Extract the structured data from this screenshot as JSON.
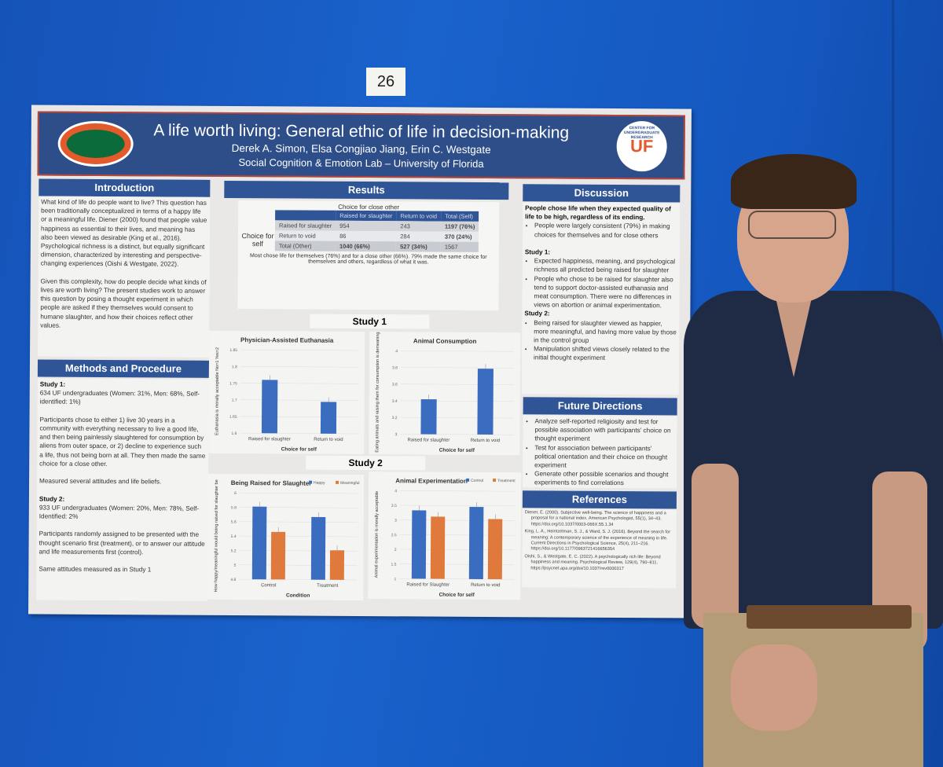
{
  "board_number": "26",
  "poster": {
    "title": "A life worth living: General ethic of life in decision-making",
    "authors": "Derek A. Simon, Elsa Congjiao Jiang, Erin C. Westgate",
    "affiliation": "Social Cognition & Emotion Lab – University of Florida",
    "logo_right_text": "CENTER FOR UNDERGRADUATE RESEARCH",
    "logo_right_mark": "UF",
    "introduction": {
      "heading": "Introduction",
      "p1": "What kind of life do people want to live? This question has been traditionally conceptualized in terms of a happy life or a meaningful life. Diener (2000) found that people value happiness as essential to their lives, and meaning has also been viewed as desirable (King et al., 2016). Psychological richness is a distinct, but equally significant dimension, characterized by interesting and perspective-changing experiences (Oishi & Westgate, 2022).",
      "p2": "Given this complexity, how do people decide what kinds of lives are worth living? The present studies work to answer this question by posing a thought experiment in which people are asked if they themselves would consent to humane slaughter, and how their choices reflect other values."
    },
    "methods": {
      "heading": "Methods and Procedure",
      "s1_title": "Study 1:",
      "s1_sample": "634 UF undergraduates (Women: 31%, Men: 68%, Self-identified: 1%)",
      "s1_p": "Participants chose to either 1) live 30 years in a community with everything necessary to live a good life, and then being painlessly slaughtered for consumption by aliens from outer space, or 2) decline to experience such a life, thus not being born at all. They then made the same choice for a close other.",
      "s1_measures": "Measured several attitudes and life beliefs.",
      "s2_title": "Study 2:",
      "s2_sample": "933 UF undergraduates (Women: 20%, Men: 78%, Self-Identified: 2%",
      "s2_p": "Participants randomly assigned to be presented with the thought scenario first (treatment), or to answer our attitude and life measurements first (control).",
      "s2_measures": "Same attitudes measured as in Study 1"
    },
    "results": {
      "heading": "Results",
      "table": {
        "title": "Choice for close other",
        "row_header": "Choice for self",
        "columns": [
          "",
          "Raised for slaughter",
          "Return to void",
          "Total (Self)"
        ],
        "rows": [
          [
            "Raised for slaughter",
            "954",
            "243",
            "1197 (76%)"
          ],
          [
            "Return to void",
            "86",
            "284",
            "370 (24%)"
          ],
          [
            "Total (Other)",
            "1040 (66%)",
            "527 (34%)",
            "1567"
          ]
        ],
        "caption": "Most chose life for themselves (76%) and for a close other (66%). 79% made the same choice for themselves and others, regardless of what it was."
      },
      "study1_label": "Study 1",
      "study2_label": "Study 2"
    },
    "discussion": {
      "heading": "Discussion",
      "lead": "People chose life when they expected quality of life to be high, regardless of its ending.",
      "lead_bullets": [
        "People were largely consistent (79%) in making choices for themselves and for close others"
      ],
      "s1_title": "Study 1:",
      "s1_bullets": [
        "Expected happiness, meaning, and psychological richness all predicted being raised for slaughter",
        "People who chose to be raised for slaughter also tend to support doctor-assisted euthanasia and meat consumption. There were no differences in views on abortion or animal experimentation."
      ],
      "s2_title": "Study 2:",
      "s2_bullets": [
        "Being raised for slaughter viewed as happier, more meaningful, and having more value by those in the control group",
        "Manipulation shifted views closely related to the initial thought experiment"
      ]
    },
    "future": {
      "heading": "Future Directions",
      "bullets": [
        "Analyze self-reported religiosity and test for possible association with participants' choice on thought experiment",
        "Test for association between participants' political orientation and their choice on thought experiment",
        "Generate other possible scenarios and thought experiments to find correlations"
      ]
    },
    "references": {
      "heading": "References",
      "items": [
        "Diener, E. (2000). Subjective well-being. The science of happiness and a proposal for a national index. American Psychologist, 55(1), 34–43. https://doi.org/10.1037/0003-066X.55.1.34",
        "King, L. A., Heintzelman, S. J., & Ward, S. J. (2016). Beyond the search for meaning: A contemporary science of the experience of meaning in life. Current Directions in Psychological Science, 25(4), 211–216. https://doi.org/10.1177/0963721416656354",
        "Oishi, S., & Westgate, E. C. (2022). A psychologically rich life: Beyond happiness and meaning. Psychological Review, 129(4), 790–811. https://psycnet.apa.org/doi/10.1037/rev0000317"
      ]
    }
  },
  "colors": {
    "wall": "#1a5fc8",
    "poster_header": "#2e4e8a",
    "section_header": "#2f5597",
    "series_blue": "#3a6cc0",
    "series_orange": "#e07a3c"
  },
  "chart_data": [
    {
      "type": "bar",
      "title": "Physician-Assisted Euthanasia",
      "xlabel": "Choice for self",
      "ylabel": "Euthanasia is morally acceptable No=1 Yes=2",
      "categories": [
        "Raised for slaughter",
        "Return to void"
      ],
      "series": [
        {
          "values": [
            1.76,
            1.695
          ]
        }
      ],
      "ylim": [
        1.6,
        1.85
      ],
      "yticks": [
        "1.6",
        "1.65",
        "1.7",
        "1.75",
        "1.8",
        "1.85"
      ]
    },
    {
      "type": "bar",
      "title": "Animal Consumption",
      "xlabel": "Choice for self",
      "ylabel": "Eating animals and raising them for consumption is demeaning",
      "categories": [
        "Raised for slaughter",
        "Return to void"
      ],
      "series": [
        {
          "values": [
            3.42,
            3.79
          ]
        }
      ],
      "ylim": [
        3,
        4
      ],
      "yticks": [
        "3",
        "3.2",
        "3.4",
        "3.6",
        "3.8",
        "4"
      ]
    },
    {
      "type": "bar",
      "title": "Being Raised for Slaughter",
      "xlabel": "Condition",
      "ylabel": "How happy/meaningful would being raised for slaughter be",
      "categories": [
        "Control",
        "Treatment"
      ],
      "series": [
        {
          "name": "Happy",
          "values": [
            5.81,
            5.67
          ]
        },
        {
          "name": "Meaningful",
          "values": [
            5.46,
            5.21
          ]
        }
      ],
      "ylim": [
        4.8,
        6
      ],
      "yticks": [
        "4.8",
        "5",
        "5.2",
        "5.4",
        "5.6",
        "5.8",
        "6"
      ],
      "legend": "top-right"
    },
    {
      "type": "bar",
      "title": "Animal Experimentation",
      "xlabel": "Choice for self",
      "ylabel": "Animal experimentation is morally acceptable",
      "categories": [
        "Raised for Slaughter",
        "Return to void"
      ],
      "series": [
        {
          "name": "Control",
          "values": [
            3.33,
            3.46
          ]
        },
        {
          "name": "Treatment",
          "values": [
            3.12,
            3.05
          ]
        }
      ],
      "ylim": [
        1,
        4
      ],
      "yticks": [
        "1",
        "1.5",
        "2",
        "2.5",
        "3",
        "3.5",
        "4"
      ],
      "legend": "top-right"
    }
  ]
}
